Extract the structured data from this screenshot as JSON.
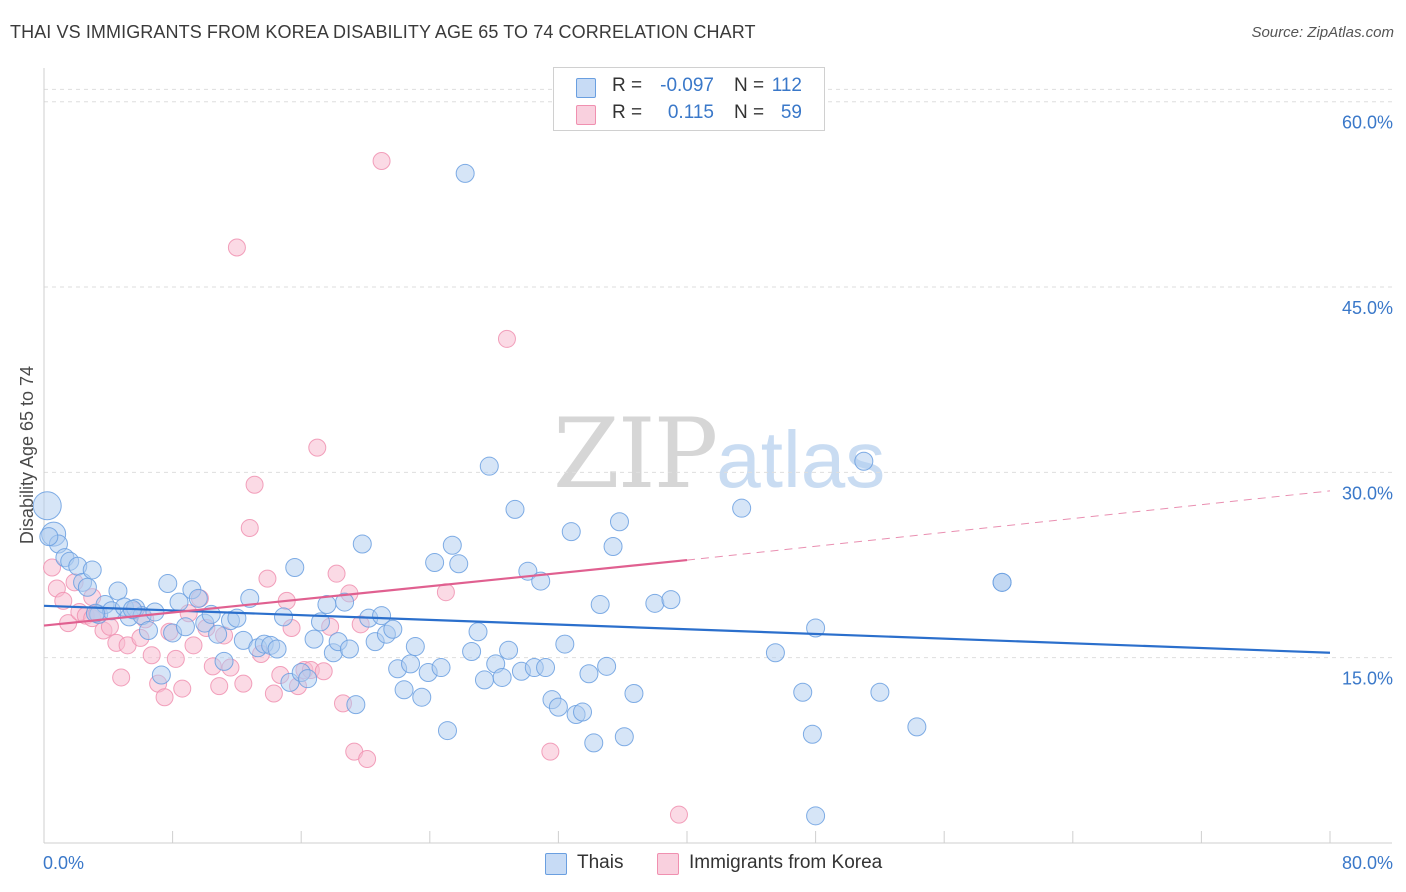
{
  "title": "THAI VS IMMIGRANTS FROM KOREA DISABILITY AGE 65 TO 74 CORRELATION CHART",
  "source": "Source: ZipAtlas.com",
  "watermark": {
    "zip": "ZIP",
    "atlas": "atlas"
  },
  "legend": {
    "rows": [
      {
        "r_label": "R =",
        "r_value": "-0.097",
        "n_label": "N =",
        "n_value": "112",
        "color": "#aecbf0"
      },
      {
        "r_label": "R =",
        "r_value": "0.115",
        "n_label": "N =",
        "n_value": "59",
        "color": "#f7bcd0"
      }
    ]
  },
  "bottom_legend": [
    {
      "label": "Thais",
      "color": "#aecbf0"
    },
    {
      "label": "Immigrants from Korea",
      "color": "#f7bcd0"
    }
  ],
  "chart_data": {
    "type": "scatter",
    "title": "THAI VS IMMIGRANTS FROM KOREA DISABILITY AGE 65 TO 74 CORRELATION CHART",
    "xlabel": "",
    "ylabel": "Disability Age 65 to 74",
    "xlim": [
      0,
      80
    ],
    "ylim": [
      0,
      62
    ],
    "x_tick_labels": [
      "0.0%",
      "80.0%"
    ],
    "y_ticks": [
      15,
      30,
      45,
      60
    ],
    "y_tick_labels": [
      "15.0%",
      "30.0%",
      "45.0%",
      "60.0%"
    ],
    "grid": true,
    "colors": {
      "thais": "#6a9fe0",
      "korea": "#f090b0",
      "thais_line": "#2b6fcc",
      "korea_line": "#e06090"
    },
    "series": [
      {
        "name": "Thais",
        "trend": {
          "x0": 0,
          "y0": 19.2,
          "x1": 80,
          "y1": 15.4
        },
        "points": [
          [
            0.2,
            27.3
          ],
          [
            0.6,
            25.0
          ],
          [
            0.9,
            24.2
          ],
          [
            1.3,
            23.1
          ],
          [
            1.6,
            22.8
          ],
          [
            2.1,
            22.4
          ],
          [
            2.4,
            21.1
          ],
          [
            2.7,
            20.7
          ],
          [
            3.0,
            22.1
          ],
          [
            3.4,
            18.5
          ],
          [
            3.8,
            19.3
          ],
          [
            4.2,
            18.8
          ],
          [
            4.6,
            20.4
          ],
          [
            5.0,
            19.1
          ],
          [
            5.3,
            18.3
          ],
          [
            5.7,
            19.0
          ],
          [
            6.1,
            18.4
          ],
          [
            6.5,
            17.2
          ],
          [
            6.9,
            18.7
          ],
          [
            7.3,
            13.6
          ],
          [
            7.7,
            21.0
          ],
          [
            8.0,
            17.0
          ],
          [
            8.4,
            19.5
          ],
          [
            8.8,
            17.5
          ],
          [
            9.2,
            20.5
          ],
          [
            9.6,
            19.8
          ],
          [
            10.0,
            17.8
          ],
          [
            10.4,
            18.5
          ],
          [
            10.8,
            16.9
          ],
          [
            11.2,
            14.7
          ],
          [
            11.6,
            18.0
          ],
          [
            12.0,
            18.2
          ],
          [
            12.4,
            16.4
          ],
          [
            12.8,
            19.8
          ],
          [
            13.3,
            15.8
          ],
          [
            13.7,
            16.1
          ],
          [
            14.1,
            16.0
          ],
          [
            14.5,
            15.7
          ],
          [
            14.9,
            18.3
          ],
          [
            15.3,
            13.0
          ],
          [
            15.6,
            22.3
          ],
          [
            16.0,
            13.8
          ],
          [
            16.4,
            13.3
          ],
          [
            16.8,
            16.5
          ],
          [
            17.2,
            17.9
          ],
          [
            17.6,
            19.3
          ],
          [
            18.0,
            15.4
          ],
          [
            18.3,
            16.3
          ],
          [
            18.7,
            19.5
          ],
          [
            19.0,
            15.7
          ],
          [
            19.4,
            11.2
          ],
          [
            19.8,
            24.2
          ],
          [
            20.2,
            18.2
          ],
          [
            20.6,
            16.3
          ],
          [
            21.0,
            18.4
          ],
          [
            21.3,
            16.9
          ],
          [
            21.7,
            17.3
          ],
          [
            22.0,
            14.1
          ],
          [
            22.4,
            12.4
          ],
          [
            22.8,
            14.5
          ],
          [
            23.1,
            15.9
          ],
          [
            23.5,
            11.8
          ],
          [
            23.9,
            13.8
          ],
          [
            24.3,
            22.7
          ],
          [
            24.7,
            14.2
          ],
          [
            25.1,
            9.1
          ],
          [
            25.4,
            24.1
          ],
          [
            25.8,
            22.6
          ],
          [
            26.2,
            54.2
          ],
          [
            26.6,
            15.5
          ],
          [
            27.0,
            17.1
          ],
          [
            27.4,
            13.2
          ],
          [
            27.7,
            30.5
          ],
          [
            28.1,
            14.5
          ],
          [
            28.5,
            13.4
          ],
          [
            28.9,
            15.6
          ],
          [
            29.3,
            27.0
          ],
          [
            29.7,
            13.9
          ],
          [
            30.1,
            22.0
          ],
          [
            30.5,
            14.2
          ],
          [
            30.9,
            21.2
          ],
          [
            31.2,
            14.2
          ],
          [
            31.6,
            11.6
          ],
          [
            32.0,
            11.0
          ],
          [
            32.4,
            16.1
          ],
          [
            32.8,
            25.2
          ],
          [
            33.1,
            10.4
          ],
          [
            33.5,
            10.6
          ],
          [
            33.9,
            13.7
          ],
          [
            34.2,
            8.1
          ],
          [
            34.6,
            19.3
          ],
          [
            35.0,
            14.3
          ],
          [
            35.4,
            24.0
          ],
          [
            35.8,
            26.0
          ],
          [
            36.1,
            8.6
          ],
          [
            36.7,
            12.1
          ],
          [
            38.0,
            19.4
          ],
          [
            39.0,
            19.7
          ],
          [
            43.4,
            27.1
          ],
          [
            45.5,
            15.4
          ],
          [
            47.2,
            12.2
          ],
          [
            47.8,
            8.8
          ],
          [
            48.0,
            17.4
          ],
          [
            51.0,
            30.9
          ],
          [
            52.0,
            12.2
          ],
          [
            54.3,
            9.4
          ],
          [
            59.6,
            21.1
          ],
          [
            48.0,
            2.2
          ],
          [
            59.6,
            21.1
          ],
          [
            0.3,
            24.8
          ],
          [
            3.2,
            18.6
          ],
          [
            5.5,
            18.9
          ]
        ]
      },
      {
        "name": "Immigrants from Korea",
        "trend": {
          "x0": 0,
          "y0": 17.6,
          "x1": 40,
          "y1": 22.9,
          "dash_to_x": 80,
          "dash_to_y": 28.5
        },
        "points": [
          [
            0.5,
            22.3
          ],
          [
            0.8,
            20.6
          ],
          [
            1.2,
            19.6
          ],
          [
            1.5,
            17.8
          ],
          [
            1.9,
            21.1
          ],
          [
            2.2,
            18.7
          ],
          [
            2.6,
            18.4
          ],
          [
            3.0,
            18.2
          ],
          [
            3.3,
            18.6
          ],
          [
            3.7,
            17.2
          ],
          [
            4.1,
            17.5
          ],
          [
            4.5,
            16.2
          ],
          [
            4.8,
            13.4
          ],
          [
            5.2,
            16.0
          ],
          [
            5.6,
            18.8
          ],
          [
            6.0,
            16.6
          ],
          [
            6.3,
            18.1
          ],
          [
            6.7,
            15.2
          ],
          [
            7.1,
            12.9
          ],
          [
            7.5,
            11.8
          ],
          [
            7.8,
            17.1
          ],
          [
            8.2,
            14.9
          ],
          [
            8.6,
            12.5
          ],
          [
            9.0,
            18.6
          ],
          [
            9.3,
            16.0
          ],
          [
            9.7,
            19.8
          ],
          [
            10.1,
            17.4
          ],
          [
            10.5,
            14.3
          ],
          [
            10.9,
            12.7
          ],
          [
            11.2,
            16.8
          ],
          [
            11.6,
            14.2
          ],
          [
            12.0,
            48.2
          ],
          [
            12.4,
            12.9
          ],
          [
            12.8,
            25.5
          ],
          [
            13.1,
            29.0
          ],
          [
            13.5,
            15.3
          ],
          [
            13.9,
            21.4
          ],
          [
            14.3,
            12.1
          ],
          [
            14.7,
            13.6
          ],
          [
            15.1,
            19.6
          ],
          [
            15.4,
            17.4
          ],
          [
            15.8,
            12.7
          ],
          [
            16.2,
            14.0
          ],
          [
            16.6,
            14.0
          ],
          [
            17.0,
            32.0
          ],
          [
            17.4,
            13.9
          ],
          [
            17.8,
            17.5
          ],
          [
            18.2,
            21.8
          ],
          [
            18.6,
            11.3
          ],
          [
            19.0,
            20.2
          ],
          [
            19.3,
            7.4
          ],
          [
            19.7,
            17.7
          ],
          [
            20.1,
            6.8
          ],
          [
            21.0,
            55.2
          ],
          [
            25.0,
            20.3
          ],
          [
            28.8,
            40.8
          ],
          [
            31.5,
            7.4
          ],
          [
            39.5,
            2.3
          ],
          [
            3.0,
            19.9
          ]
        ]
      }
    ]
  }
}
